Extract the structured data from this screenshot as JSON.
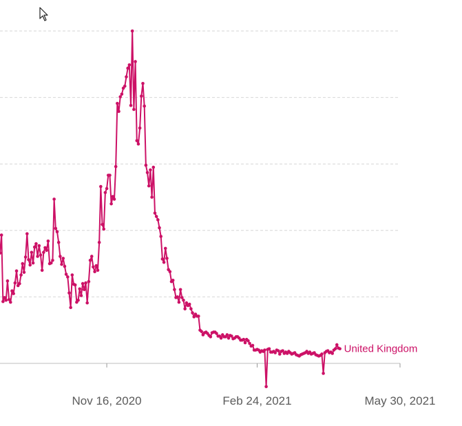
{
  "chart_data": {
    "type": "line",
    "title": "",
    "xlabel": "",
    "ylabel": "",
    "x_ticks": [
      "Nov 16, 2020",
      "Feb 24, 2021",
      "May 30, 2021"
    ],
    "xlim": [
      "2020-09-06",
      "2021-05-30"
    ],
    "ylim": [
      0,
      5
    ],
    "y_gridlines": [
      1,
      2,
      3,
      4,
      5
    ],
    "grid": true,
    "color": "#cc1166",
    "series": [
      {
        "name": "United Kingdom",
        "x_start": "2020-09-06",
        "x_step_days": 1,
        "values": [
          1.66,
          1.93,
          0.93,
          0.99,
          0.95,
          1.24,
          0.96,
          0.92,
          1.09,
          1.05,
          1.21,
          1.39,
          1.17,
          1.2,
          1.33,
          1.5,
          1.37,
          1.6,
          1.95,
          1.56,
          1.48,
          1.67,
          1.51,
          1.75,
          1.8,
          1.61,
          1.77,
          1.63,
          1.4,
          1.67,
          1.74,
          1.7,
          1.84,
          1.5,
          1.51,
          1.55,
          2.47,
          2.03,
          1.98,
          1.82,
          1.61,
          1.49,
          1.58,
          1.46,
          1.34,
          1.3,
          1.06,
          0.84,
          1.33,
          1.19,
          1.18,
          0.92,
          0.95,
          1.12,
          1.02,
          1.2,
          1.11,
          1.21,
          0.91,
          1.23,
          1.55,
          1.61,
          1.45,
          1.38,
          1.47,
          1.4,
          1.82,
          2.66,
          2.09,
          2.02,
          2.57,
          2.63,
          2.83,
          2.83,
          2.4,
          2.51,
          2.47,
          2.96,
          3.91,
          3.79,
          4.01,
          4.05,
          4.14,
          4.17,
          4.31,
          4.44,
          4.49,
          3.88,
          5.0,
          3.82,
          4.54,
          3.35,
          3.3,
          3.54,
          4.02,
          4.21,
          3.87,
          2.98,
          2.87,
          2.67,
          2.91,
          2.5,
          2.95,
          2.26,
          2.21,
          2.16,
          2.04,
          1.91,
          1.57,
          1.52,
          1.73,
          1.58,
          1.41,
          1.38,
          1.23,
          1.25,
          1.11,
          0.99,
          1.0,
          0.92,
          1.11,
          0.99,
          0.95,
          0.82,
          0.91,
          0.87,
          0.89,
          0.82,
          0.76,
          0.7,
          0.74,
          0.71,
          0.71,
          0.5,
          0.48,
          0.43,
          0.46,
          0.47,
          0.45,
          0.42,
          0.4,
          0.46,
          0.47,
          0.47,
          0.45,
          0.41,
          0.41,
          0.38,
          0.43,
          0.4,
          0.4,
          0.43,
          0.38,
          0.42,
          0.41,
          0.37,
          0.38,
          0.4,
          0.4,
          0.38,
          0.35,
          0.35,
          0.36,
          0.31,
          0.36,
          0.34,
          0.3,
          0.26,
          0.27,
          0.2,
          0.2,
          0.21,
          0.2,
          0.17,
          0.19,
          0.18,
          0.2,
          -0.35,
          0.21,
          0.22,
          0.17,
          0.17,
          0.18,
          0.16,
          0.2,
          0.19,
          0.14,
          0.18,
          0.19,
          0.15,
          0.17,
          0.15,
          0.18,
          0.16,
          0.14,
          0.15,
          0.16,
          0.13,
          0.12,
          0.11,
          0.13,
          0.14,
          0.15,
          0.16,
          0.18,
          0.15,
          0.17,
          0.14,
          0.15,
          0.16,
          0.13,
          0.12,
          0.11,
          0.12,
          0.14,
          -0.15,
          0.16,
          0.18,
          0.19,
          0.16,
          0.17,
          0.15,
          0.2,
          0.22,
          0.28,
          0.23,
          0.22
        ]
      }
    ]
  }
}
